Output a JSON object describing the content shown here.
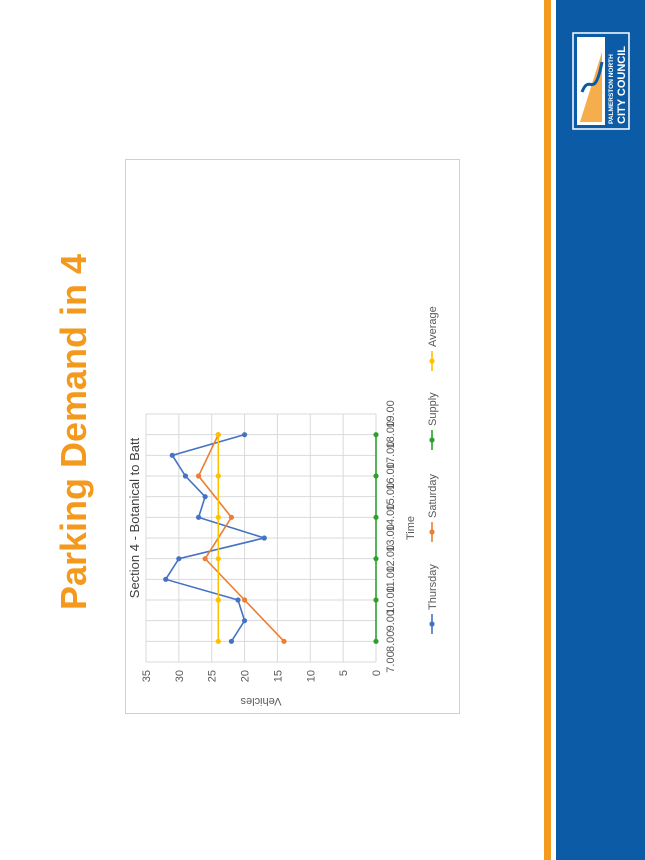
{
  "slide": {
    "title": "Parking Demand in 4"
  },
  "logo": {
    "line1": "PALMERSTON NORTH",
    "line2": "CITY COUNCIL"
  },
  "colors": {
    "band": "#0b5ba6",
    "stripe": "#f39a1e",
    "title": "#f39a1e"
  },
  "chart_data": {
    "type": "line",
    "title": "Section 4 - Botanical to Batt",
    "xlabel": "Time",
    "ylabel": "Vehicles",
    "xlim": [
      7,
      19
    ],
    "ylim": [
      0,
      35
    ],
    "x_ticks": [
      "7.00",
      "8.00",
      "9.00",
      "10.00",
      "11.00",
      "12.00",
      "13.00",
      "14.00",
      "15.00",
      "16.00",
      "17.00",
      "18.00",
      "19.00"
    ],
    "y_ticks": [
      "0",
      "5",
      "10",
      "15",
      "20",
      "25",
      "30",
      "35"
    ],
    "grid": true,
    "legend_position": "bottom",
    "series": [
      {
        "name": "Thursday",
        "color": "#4472c4",
        "points": [
          [
            8,
            22
          ],
          [
            9,
            20
          ],
          [
            10,
            21
          ],
          [
            11,
            32
          ],
          [
            12,
            30
          ],
          [
            13,
            17
          ],
          [
            14,
            27
          ],
          [
            15,
            26
          ],
          [
            16,
            29
          ],
          [
            17,
            31
          ],
          [
            18,
            20
          ]
        ]
      },
      {
        "name": "Saturday",
        "color": "#ed7d31",
        "points": [
          [
            8,
            14
          ],
          [
            10,
            20
          ],
          [
            12,
            26
          ],
          [
            14,
            22
          ],
          [
            16,
            27
          ],
          [
            18,
            24
          ]
        ]
      },
      {
        "name": "Supply",
        "color": "#2ca02c",
        "points": [
          [
            8,
            0
          ],
          [
            10,
            0
          ],
          [
            12,
            0
          ],
          [
            14,
            0
          ],
          [
            16,
            0
          ],
          [
            18,
            0
          ]
        ]
      },
      {
        "name": "Average",
        "color": "#ffc000",
        "points": [
          [
            8,
            24
          ],
          [
            10,
            24
          ],
          [
            12,
            24
          ],
          [
            14,
            24
          ],
          [
            16,
            24
          ],
          [
            18,
            24
          ]
        ]
      }
    ]
  }
}
